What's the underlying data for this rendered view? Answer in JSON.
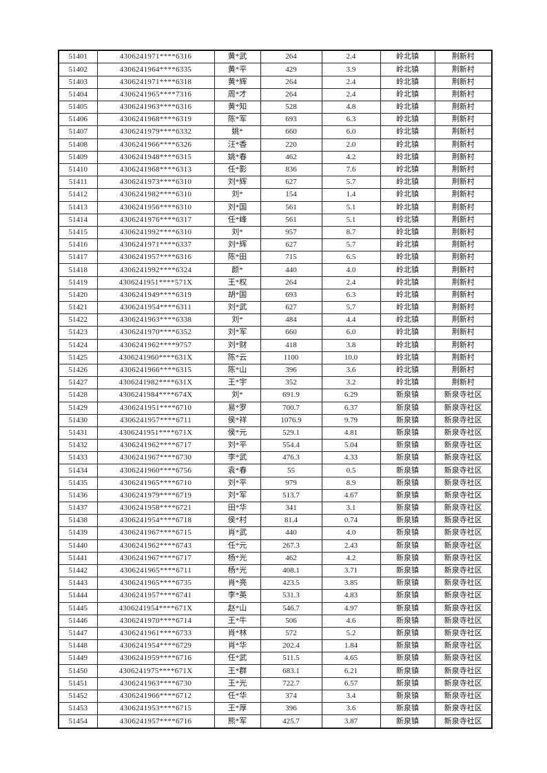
{
  "page": {
    "background_color": "#ffffff",
    "text_color": "#1c1c1c",
    "border_color": "#111111"
  },
  "table": {
    "column_names": [
      "serial-number",
      "masked-id-number",
      "masked-name",
      "amount",
      "value",
      "town",
      "village"
    ],
    "rows": [
      [
        "51401",
        "4306241971****6316",
        "黄*武",
        "264",
        "2.4",
        "岭北镇",
        "荆新村"
      ],
      [
        "51402",
        "4306241964****6335",
        "黄*平",
        "429",
        "3.9",
        "岭北镇",
        "荆新村"
      ],
      [
        "51403",
        "4306241971****6318",
        "黄*辉",
        "264",
        "2.4",
        "岭北镇",
        "荆新村"
      ],
      [
        "51404",
        "4306241965****7316",
        "周*才",
        "264",
        "2.4",
        "岭北镇",
        "荆新村"
      ],
      [
        "51405",
        "4306241963****6316",
        "黄*知",
        "528",
        "4.8",
        "岭北镇",
        "荆新村"
      ],
      [
        "51406",
        "4306241968****6319",
        "陈*军",
        "693",
        "6.3",
        "岭北镇",
        "荆新村"
      ],
      [
        "51407",
        "4306241979****6332",
        "姚*",
        "660",
        "6.0",
        "岭北镇",
        "荆新村"
      ],
      [
        "51408",
        "4306241966****6326",
        "汪*香",
        "220",
        "2.0",
        "岭北镇",
        "荆新村"
      ],
      [
        "51409",
        "4306241948****6315",
        "姚*春",
        "462",
        "4.2",
        "岭北镇",
        "荆新村"
      ],
      [
        "51410",
        "4306241968****6313",
        "任*影",
        "836",
        "7.6",
        "岭北镇",
        "荆新村"
      ],
      [
        "51411",
        "4306241973****6310",
        "刘*辉",
        "627",
        "5.7",
        "岭北镇",
        "荆新村"
      ],
      [
        "51412",
        "4306241982****6310",
        "刘*",
        "154",
        "1.4",
        "岭北镇",
        "荆新村"
      ],
      [
        "51413",
        "4306241956****6310",
        "刘*国",
        "561",
        "5.1",
        "岭北镇",
        "荆新村"
      ],
      [
        "51414",
        "4306241976****6317",
        "任*峰",
        "561",
        "5.1",
        "岭北镇",
        "荆新村"
      ],
      [
        "51415",
        "4306241992****6310",
        "刘*",
        "957",
        "8.7",
        "岭北镇",
        "荆新村"
      ],
      [
        "51416",
        "4306241971****6337",
        "刘*辉",
        "627",
        "5.7",
        "岭北镇",
        "荆新村"
      ],
      [
        "51417",
        "4306241957****6316",
        "陈*田",
        "715",
        "6.5",
        "岭北镇",
        "荆新村"
      ],
      [
        "51418",
        "4306241992****6324",
        "颜*",
        "440",
        "4.0",
        "岭北镇",
        "荆新村"
      ],
      [
        "51419",
        "4306241951****571X",
        "王*权",
        "264",
        "2.4",
        "岭北镇",
        "荆新村"
      ],
      [
        "51420",
        "4306241949****6319",
        "胡*国",
        "693",
        "6.3",
        "岭北镇",
        "荆新村"
      ],
      [
        "51421",
        "4306241954****6311",
        "刘*武",
        "627",
        "5.7",
        "岭北镇",
        "荆新村"
      ],
      [
        "51422",
        "4306241963****6338",
        "刘*",
        "484",
        "4.4",
        "岭北镇",
        "荆新村"
      ],
      [
        "51423",
        "4306241970****6352",
        "刘*军",
        "660",
        "6.0",
        "岭北镇",
        "荆新村"
      ],
      [
        "51424",
        "4306241962****9757",
        "刘*财",
        "418",
        "3.8",
        "岭北镇",
        "荆新村"
      ],
      [
        "51425",
        "4306241960****631X",
        "陈*云",
        "1100",
        "10.0",
        "岭北镇",
        "荆新村"
      ],
      [
        "51426",
        "4306241966****6315",
        "陈*山",
        "396",
        "3.6",
        "岭北镇",
        "荆新村"
      ],
      [
        "51427",
        "4306241982****631X",
        "王*宇",
        "352",
        "3.2",
        "岭北镇",
        "荆新村"
      ],
      [
        "51428",
        "4306241984****674X",
        "刘*",
        "691.9",
        "6.29",
        "新泉镇",
        "新泉寺社区"
      ],
      [
        "51429",
        "4306241951****6710",
        "易*罗",
        "700.7",
        "6.37",
        "新泉镇",
        "新泉寺社区"
      ],
      [
        "51430",
        "4306241957****6711",
        "侯*祥",
        "1076.9",
        "9.79",
        "新泉镇",
        "新泉寺社区"
      ],
      [
        "51431",
        "4306241951****671X",
        "侯*元",
        "529.1",
        "4.81",
        "新泉镇",
        "新泉寺社区"
      ],
      [
        "51432",
        "4306241962****6717",
        "刘*平",
        "554.4",
        "5.04",
        "新泉镇",
        "新泉寺社区"
      ],
      [
        "51433",
        "4306241967****6730",
        "李*武",
        "476.3",
        "4.33",
        "新泉镇",
        "新泉寺社区"
      ],
      [
        "51434",
        "4306241960****6756",
        "袁*春",
        "55",
        "0.5",
        "新泉镇",
        "新泉寺社区"
      ],
      [
        "51435",
        "4306241965****6710",
        "刘*平",
        "979",
        "8.9",
        "新泉镇",
        "新泉寺社区"
      ],
      [
        "51436",
        "4306241979****6719",
        "刘*军",
        "513.7",
        "4.67",
        "新泉镇",
        "新泉寺社区"
      ],
      [
        "51437",
        "4306241958****6721",
        "田*华",
        "341",
        "3.1",
        "新泉镇",
        "新泉寺社区"
      ],
      [
        "51438",
        "4306241954****6718",
        "侯*村",
        "81.4",
        "0.74",
        "新泉镇",
        "新泉寺社区"
      ],
      [
        "51439",
        "4306241967****6715",
        "肖*武",
        "440",
        "4.0",
        "新泉镇",
        "新泉寺社区"
      ],
      [
        "51440",
        "4306241962****6743",
        "任*元",
        "267.3",
        "2.43",
        "新泉镇",
        "新泉寺社区"
      ],
      [
        "51441",
        "4306241967****6717",
        "杨*光",
        "462",
        "4.2",
        "新泉镇",
        "新泉寺社区"
      ],
      [
        "51442",
        "4306241965****6711",
        "杨*光",
        "408.1",
        "3.71",
        "新泉镇",
        "新泉寺社区"
      ],
      [
        "51443",
        "4306241965****6735",
        "肖*亮",
        "423.5",
        "3.85",
        "新泉镇",
        "新泉寺社区"
      ],
      [
        "51444",
        "4306241957****6741",
        "李*英",
        "531.3",
        "4.83",
        "新泉镇",
        "新泉寺社区"
      ],
      [
        "51445",
        "4306241954****671X",
        "赵*山",
        "546.7",
        "4.97",
        "新泉镇",
        "新泉寺社区"
      ],
      [
        "51446",
        "4306241970****6714",
        "王*牛",
        "506",
        "4.6",
        "新泉镇",
        "新泉寺社区"
      ],
      [
        "51447",
        "4306241961****6733",
        "肖*林",
        "572",
        "5.2",
        "新泉镇",
        "新泉寺社区"
      ],
      [
        "51448",
        "4306241954****6729",
        "肖*华",
        "202.4",
        "1.84",
        "新泉镇",
        "新泉寺社区"
      ],
      [
        "51449",
        "4306241959****6716",
        "任*武",
        "511.5",
        "4.65",
        "新泉镇",
        "新泉寺社区"
      ],
      [
        "51450",
        "4306241975****671X",
        "王*群",
        "683.1",
        "6.21",
        "新泉镇",
        "新泉寺社区"
      ],
      [
        "51451",
        "4306241963****6730",
        "王*光",
        "722.7",
        "6.57",
        "新泉镇",
        "新泉寺社区"
      ],
      [
        "51452",
        "4306241966****6712",
        "任*华",
        "374",
        "3.4",
        "新泉镇",
        "新泉寺社区"
      ],
      [
        "51453",
        "4306241953****6715",
        "王*厚",
        "396",
        "3.6",
        "新泉镇",
        "新泉寺社区"
      ],
      [
        "51454",
        "4306241957****6716",
        "熊*军",
        "425.7",
        "3.87",
        "新泉镇",
        "新泉寺社区"
      ]
    ]
  }
}
